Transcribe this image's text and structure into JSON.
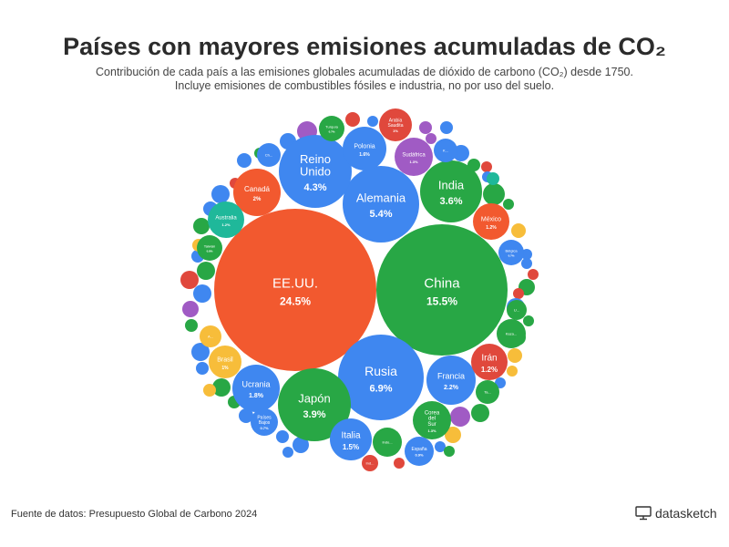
{
  "header": {
    "title": "Países con mayores emisiones acumuladas de CO₂",
    "subtitle_line1": "Contribución de cada país a las emisiones globales acumuladas de dióxido de carbono (CO₂) desde 1750.",
    "subtitle_line2": "Incluye emisiones de combustibles fósiles e industria, no por uso del suelo."
  },
  "footer": {
    "source": "Fuente de datos: Presupuesto Global de Carbono 2024",
    "brand": "datasketch"
  },
  "colors": {
    "red": "#f2592f",
    "green": "#28a745",
    "blue": "#3f87f0",
    "teal": "#1fb89a",
    "purple": "#a05bc4",
    "yellow": "#f7bd3a",
    "darkred": "#e0483c"
  },
  "chart_data": {
    "type": "bubble",
    "unit": "%",
    "labeled": [
      {
        "name": "EE.UU.",
        "value": "24.5%",
        "color": "red"
      },
      {
        "name": "China",
        "value": "15.5%",
        "color": "green"
      },
      {
        "name": "Rusia",
        "value": "6.9%",
        "color": "blue"
      },
      {
        "name": "Alemania",
        "value": "5.4%",
        "color": "blue"
      },
      {
        "name": "Reino Unido",
        "value": "4.3%",
        "color": "blue"
      },
      {
        "name": "Japón",
        "value": "3.9%",
        "color": "green"
      },
      {
        "name": "India",
        "value": "3.6%",
        "color": "green"
      },
      {
        "name": "Francia",
        "value": "2.2%",
        "color": "blue"
      },
      {
        "name": "Canadá",
        "value": "2%",
        "color": "red"
      },
      {
        "name": "Ucrania",
        "value": "1.8%",
        "color": "blue"
      },
      {
        "name": "Polonia",
        "value": "1.6%",
        "color": "blue"
      },
      {
        "name": "Italia",
        "value": "1.5%",
        "color": "blue"
      },
      {
        "name": "Sudáfrica",
        "value": "1.3%",
        "color": "purple"
      },
      {
        "name": "Corea del Sur",
        "value": "1.3%",
        "color": "green"
      },
      {
        "name": "México",
        "value": "1.2%",
        "color": "red"
      },
      {
        "name": "Irán",
        "value": "1.2%",
        "color": "darkred"
      },
      {
        "name": "Australia",
        "value": "1.2%",
        "color": "teal"
      },
      {
        "name": "Arabia Saudita",
        "value": "1%",
        "color": "darkred"
      },
      {
        "name": "Brasil",
        "value": "1%",
        "color": "yellow"
      },
      {
        "name": "España",
        "value": "0.9%",
        "color": "blue"
      },
      {
        "name": "Taiwán",
        "value": "0.8%",
        "color": "green"
      },
      {
        "name": "Bélgica",
        "value": "0.7%",
        "color": "blue"
      },
      {
        "name": "Países Bajos",
        "value": "0.7%",
        "color": "blue"
      },
      {
        "name": "Turquía",
        "value": "0.7%",
        "color": "green"
      }
    ],
    "truncated": [
      {
        "name": "K...",
        "color": "blue"
      },
      {
        "name": "Ch...",
        "color": "blue"
      },
      {
        "name": "Kaza...",
        "color": "green"
      },
      {
        "name": "Indo...",
        "color": "green"
      },
      {
        "name": "Ta...",
        "color": "green"
      },
      {
        "name": "A...",
        "color": "yellow"
      },
      {
        "name": "U...",
        "color": "green"
      },
      {
        "name": "Ind...",
        "color": "darkred"
      }
    ],
    "unlabeled_colors": [
      "green",
      "purple",
      "blue",
      "darkred",
      "blue",
      "purple",
      "blue",
      "purple",
      "blue",
      "green",
      "darkred",
      "blue",
      "teal",
      "green",
      "yellow",
      "blue",
      "blue",
      "darkred",
      "green",
      "darkred",
      "blue",
      "green",
      "green",
      "yellow",
      "yellow",
      "blue",
      "green",
      "purple",
      "yellow",
      "blue",
      "green",
      "darkred",
      "blue",
      "blue",
      "blue",
      "blue",
      "green",
      "green",
      "yellow",
      "blue",
      "blue",
      "green",
      "purple",
      "darkred",
      "green",
      "blue",
      "blue",
      "yellow",
      "green",
      "blue",
      "blue",
      "darkred",
      "blue",
      "green"
    ]
  }
}
